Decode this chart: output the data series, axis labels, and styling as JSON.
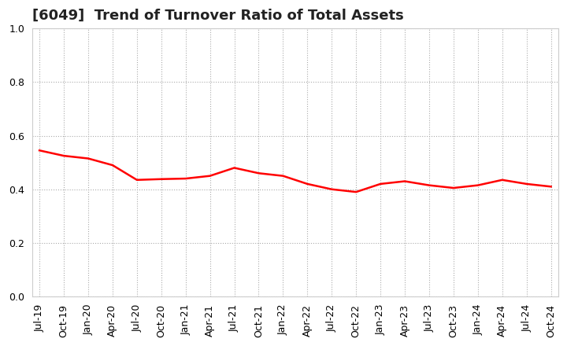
{
  "title": "[6049]  Trend of Turnover Ratio of Total Assets",
  "xlabels": [
    "Jul-19",
    "Oct-19",
    "Jan-20",
    "Apr-20",
    "Jul-20",
    "Oct-20",
    "Jan-21",
    "Apr-21",
    "Jul-21",
    "Oct-21",
    "Jan-22",
    "Apr-22",
    "Jul-22",
    "Oct-22",
    "Jan-23",
    "Apr-23",
    "Jul-23",
    "Oct-23",
    "Jan-24",
    "Apr-24",
    "Jul-24",
    "Oct-24"
  ],
  "values": [
    0.545,
    0.525,
    0.515,
    0.49,
    0.435,
    0.438,
    0.44,
    0.45,
    0.48,
    0.46,
    0.45,
    0.42,
    0.4,
    0.39,
    0.42,
    0.43,
    0.415,
    0.405,
    0.415,
    0.435,
    0.42,
    0.41
  ],
  "line_color": "#FF0000",
  "line_width": 1.8,
  "ylim": [
    0.0,
    1.0
  ],
  "yticks": [
    0.0,
    0.2,
    0.4,
    0.6,
    0.8,
    1.0
  ],
  "grid_color": "#aaaaaa",
  "grid_linestyle": ":",
  "background_color": "#ffffff",
  "title_fontsize": 13,
  "tick_fontsize": 9,
  "title_color": "#222222",
  "title_fontweight": "bold"
}
